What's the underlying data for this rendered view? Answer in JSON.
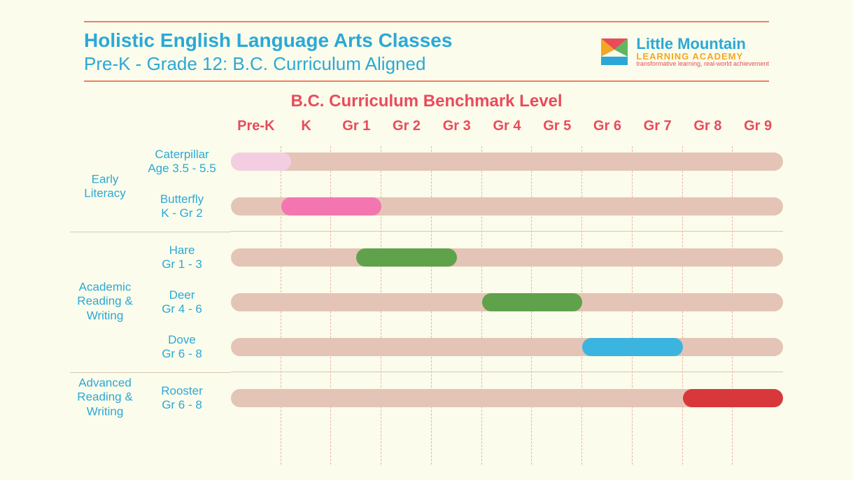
{
  "colors": {
    "background": "#fbfceb",
    "rule": "#f08060",
    "title": "#2ba8d8",
    "accent_red": "#e94b5b",
    "track": "#e4c4b6",
    "gridline": "#f0b0a8",
    "group_sep": "#d8c8b0"
  },
  "header": {
    "title": "Holistic English Language Arts Classes",
    "subtitle": "Pre-K - Grade 12: B.C. Curriculum Aligned"
  },
  "logo": {
    "brand_line1": "Little Mountain",
    "brand_line2": "LEARNING ACADEMY",
    "tagline": "transformative learning, real-world achievement",
    "mark_colors": {
      "tri_top": "#e94b5b",
      "tri_left": "#f5a623",
      "tri_right": "#5fb85f",
      "bottom": "#2ba8d8"
    }
  },
  "chart": {
    "title": "B.C. Curriculum Benchmark Level",
    "title_color": "#e94b5b",
    "axis_color": "#e94b5b",
    "axis_fontsize": 20,
    "label_fontsize": 17,
    "track_height": 26,
    "categories": [
      "Pre-K",
      "K",
      "Gr 1",
      "Gr 2",
      "Gr 3",
      "Gr 4",
      "Gr 5",
      "Gr 6",
      "Gr 7",
      "Gr 8",
      "Gr 9"
    ],
    "groups": [
      {
        "label": "Early Literacy",
        "rows": [
          {
            "name": "Caterpillar",
            "sub": "Age 3.5 - 5.5",
            "start": 0,
            "span": 1.2,
            "color": "#f3cee1"
          },
          {
            "name": "Butterfly",
            "sub": "K - Gr 2",
            "start": 1,
            "span": 2,
            "color": "#f376b1"
          }
        ]
      },
      {
        "label": "Academic Reading & Writing",
        "rows": [
          {
            "name": "Hare",
            "sub": "Gr 1 - 3",
            "start": 2.5,
            "span": 2,
            "color": "#5fa24b"
          },
          {
            "name": "Deer",
            "sub": "Gr 4 - 6",
            "start": 5,
            "span": 2,
            "color": "#5fa24b"
          },
          {
            "name": "Dove",
            "sub": "Gr 6 - 8",
            "start": 7,
            "span": 2,
            "color": "#3bb4e0"
          }
        ]
      },
      {
        "label": "Advanced Reading & Writing",
        "rows": [
          {
            "name": "Rooster",
            "sub": "Gr 6 - 8",
            "start": 9,
            "span": 2,
            "color": "#d8383a"
          }
        ]
      }
    ]
  }
}
